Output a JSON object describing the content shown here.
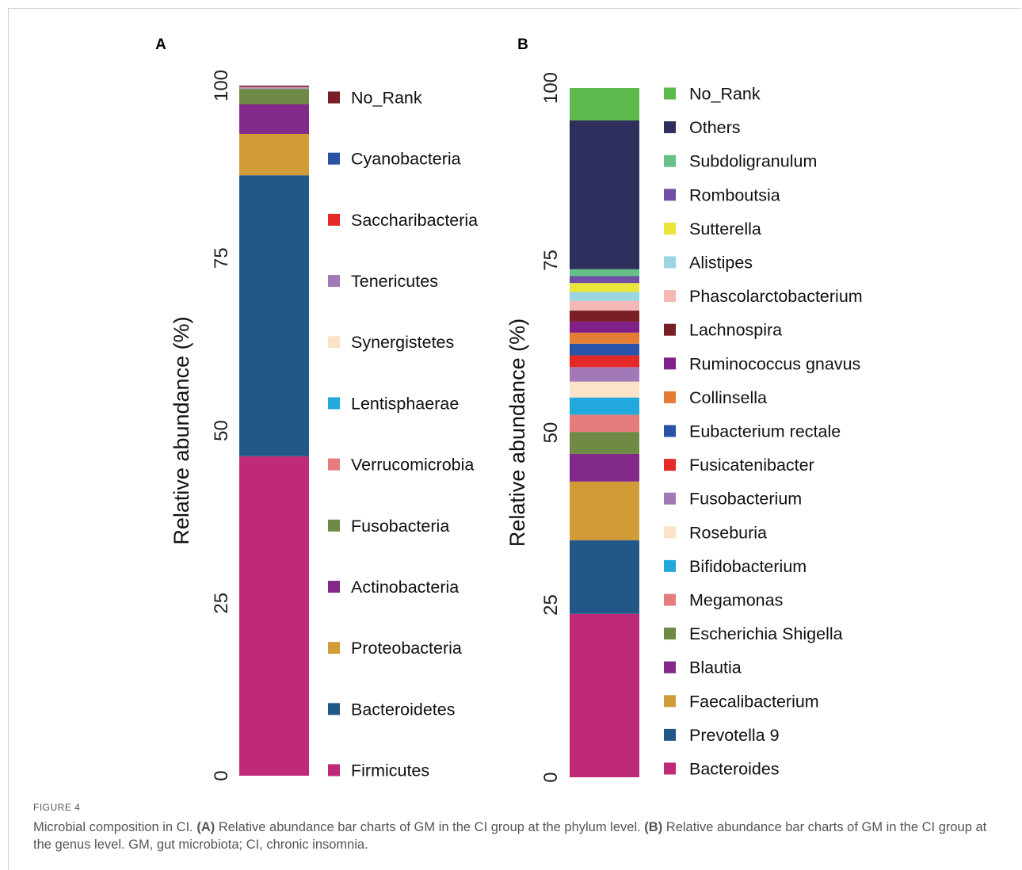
{
  "figure": {
    "label": "FIGURE 4",
    "caption_parts": [
      {
        "text": "Microbial composition in CI. ",
        "bold": false
      },
      {
        "text": "(A)",
        "bold": true
      },
      {
        "text": " Relative abundance bar charts of GM in the CI group at the phylum level. ",
        "bold": false
      },
      {
        "text": "(B)",
        "bold": true
      },
      {
        "text": " Relative abundance bar charts of GM in the CI group at the genus level. GM, gut microbiota; CI, chronic insomnia.",
        "bold": false
      }
    ]
  },
  "chart_data": [
    {
      "type": "bar",
      "stacked": true,
      "panel": "A",
      "ylabel": "Relative abundance (%)",
      "ylim": [
        0,
        100
      ],
      "yticks": [
        0,
        25,
        50,
        75,
        100
      ],
      "legend_placement": "right",
      "series": [
        {
          "name": "Firmicutes",
          "value": 46.3,
          "color": "#BE2A77"
        },
        {
          "name": "Bacteroidetes",
          "value": 40.7,
          "color": "#215888"
        },
        {
          "name": "Proteobacteria",
          "value": 6.0,
          "color": "#D19B38"
        },
        {
          "name": "Actinobacteria",
          "value": 4.3,
          "color": "#812A8A"
        },
        {
          "name": "Fusobacteria",
          "value": 2.2,
          "color": "#6E8A45"
        },
        {
          "name": "Verrucomicrobia",
          "value": 0.1,
          "color": "#E57D7E"
        },
        {
          "name": "Lentisphaerae",
          "value": 0.05,
          "color": "#21A8DC"
        },
        {
          "name": "Synergistetes",
          "value": 0.05,
          "color": "#FBE3C9"
        },
        {
          "name": "Tenericutes",
          "value": 0.05,
          "color": "#A378B7"
        },
        {
          "name": "Saccharibacteria",
          "value": 0.1,
          "color": "#E52828"
        },
        {
          "name": "Cyanobacteria",
          "value": 0.05,
          "color": "#2853A6"
        },
        {
          "name": "No_Rank",
          "value": 0.1,
          "color": "#7A1F26"
        }
      ]
    },
    {
      "type": "bar",
      "stacked": true,
      "panel": "B",
      "ylabel": "Relative abundance (%)",
      "ylim": [
        0,
        100
      ],
      "yticks": [
        0,
        25,
        50,
        75,
        100
      ],
      "legend_placement": "right",
      "series": [
        {
          "name": "Bacteroides",
          "value": 23.7,
          "color": "#BE2A77"
        },
        {
          "name": "Prevotella 9",
          "value": 10.7,
          "color": "#215888"
        },
        {
          "name": "Faecalibacterium",
          "value": 8.5,
          "color": "#D19B38"
        },
        {
          "name": "Blautia",
          "value": 4.0,
          "color": "#812A8A"
        },
        {
          "name": "Escherichia Shigella",
          "value": 3.2,
          "color": "#6E8A45"
        },
        {
          "name": "Megamonas",
          "value": 2.5,
          "color": "#E57D7E"
        },
        {
          "name": "Bifidobacterium",
          "value": 2.5,
          "color": "#21A8DC"
        },
        {
          "name": "Roseburia",
          "value": 2.3,
          "color": "#FBE3C9"
        },
        {
          "name": "Fusobacterium",
          "value": 2.1,
          "color": "#A378B7"
        },
        {
          "name": "Fusicatenibacter",
          "value": 1.7,
          "color": "#E52828"
        },
        {
          "name": "Eubacterium rectale",
          "value": 1.7,
          "color": "#2853A6"
        },
        {
          "name": "Collinsella",
          "value": 1.6,
          "color": "#E57C34"
        },
        {
          "name": "Ruminococcus gnavus",
          "value": 1.6,
          "color": "#82208A"
        },
        {
          "name": "Lachnospira",
          "value": 1.6,
          "color": "#7A1F26"
        },
        {
          "name": "Phascolarctobacterium",
          "value": 1.4,
          "color": "#F4B8B6"
        },
        {
          "name": "Alistipes",
          "value": 1.3,
          "color": "#9AD5E2"
        },
        {
          "name": "Sutterella",
          "value": 1.3,
          "color": "#EBE43B"
        },
        {
          "name": "Romboutsia",
          "value": 1.0,
          "color": "#6F4FA2"
        },
        {
          "name": "Subdoligranulum",
          "value": 1.0,
          "color": "#65C088"
        },
        {
          "name": "Others",
          "value": 21.6,
          "color": "#2F2F5E"
        },
        {
          "name": "No_Rank",
          "value": 4.7,
          "color": "#5DB94C"
        }
      ]
    }
  ]
}
